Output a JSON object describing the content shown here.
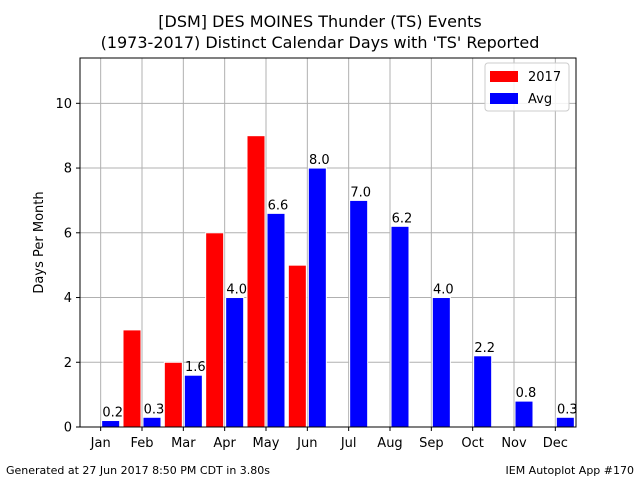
{
  "title_lines": [
    "[DSM] DES MOINES Thunder (TS) Events",
    "(1973-2017) Distinct Calendar Days with 'TS' Reported"
  ],
  "footer": {
    "left": "Generated at 27 Jun 2017 8:50 PM CDT in 3.80s",
    "right": "IEM Autoplot App #170"
  },
  "chart_data": {
    "type": "bar",
    "title": "[DSM] DES MOINES Thunder (TS) Events (1973-2017) Distinct Calendar Days with 'TS' Reported",
    "xlabel": "",
    "ylabel": "Days Per Month",
    "categories": [
      "Jan",
      "Feb",
      "Mar",
      "Apr",
      "May",
      "Jun",
      "Jul",
      "Aug",
      "Sep",
      "Oct",
      "Nov",
      "Dec"
    ],
    "series": [
      {
        "name": "2017",
        "color": "#ff0000",
        "values": [
          0,
          3,
          2,
          6,
          9,
          5,
          null,
          null,
          null,
          null,
          null,
          null
        ]
      },
      {
        "name": "Avg",
        "color": "#0000ff",
        "values": [
          0.2,
          0.3,
          1.6,
          4.0,
          6.6,
          8.0,
          7.0,
          6.2,
          4.0,
          2.2,
          0.8,
          0.3
        ],
        "labels": [
          "0.2",
          "0.3",
          "1.6",
          "4.0",
          "6.6",
          "8.0",
          "7.0",
          "6.2",
          "4.0",
          "2.2",
          "0.8",
          "0.3"
        ]
      }
    ],
    "ylim": [
      0,
      11.4
    ],
    "yticks": [
      0,
      2,
      4,
      6,
      8,
      10
    ],
    "grid": true,
    "legend_position": "top-right"
  }
}
